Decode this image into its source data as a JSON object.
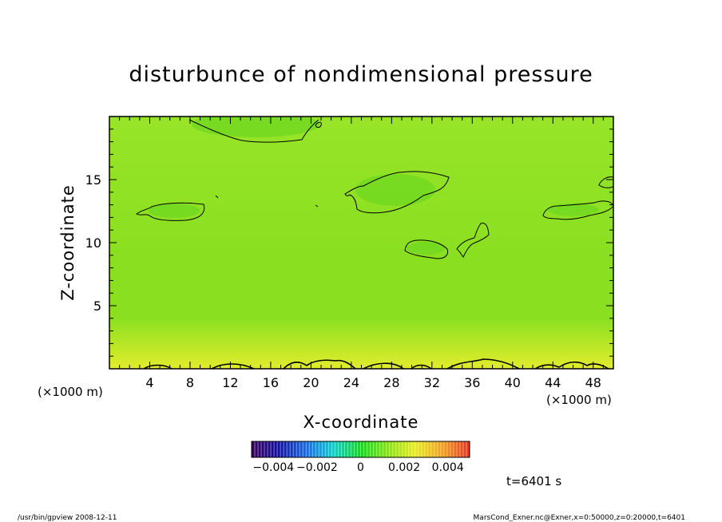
{
  "chart_data": {
    "type": "heatmap",
    "title": "disturbunce of nondimensional pressure",
    "xlabel": "X-coordinate",
    "ylabel": "Z-coordinate",
    "x_unit": "(×1000 m)",
    "y_unit": "(×1000 m)",
    "xlim": [
      0,
      50
    ],
    "ylim": [
      0,
      20
    ],
    "x_ticks": [
      "4",
      "8",
      "12",
      "16",
      "20",
      "24",
      "28",
      "32",
      "36",
      "40",
      "44",
      "48"
    ],
    "y_ticks": [
      "5",
      "10",
      "15"
    ],
    "colorbar": {
      "range": [
        -0.005,
        0.005
      ],
      "tick_labels": [
        "-0.004",
        "-0.002",
        "0",
        "0.002",
        "0.004"
      ],
      "colors": [
        "#380058",
        "#1010a0",
        "#1a6adc",
        "#19c8c8",
        "#1fd02a",
        "#88e020",
        "#e8e82a",
        "#f0a020",
        "#e83020"
      ]
    },
    "time_label": "t=6401 s",
    "field_colors": {
      "top": "#98e428",
      "middle": "#8ae020",
      "bottom": "#e2ec2c",
      "blob": "#6ed820"
    }
  },
  "footer": {
    "left": "/usr/bin/gpview  2008-12-11",
    "right": "MarsCond_Exner.nc@Exner,x=0:50000,z=0:20000,t=6401"
  }
}
